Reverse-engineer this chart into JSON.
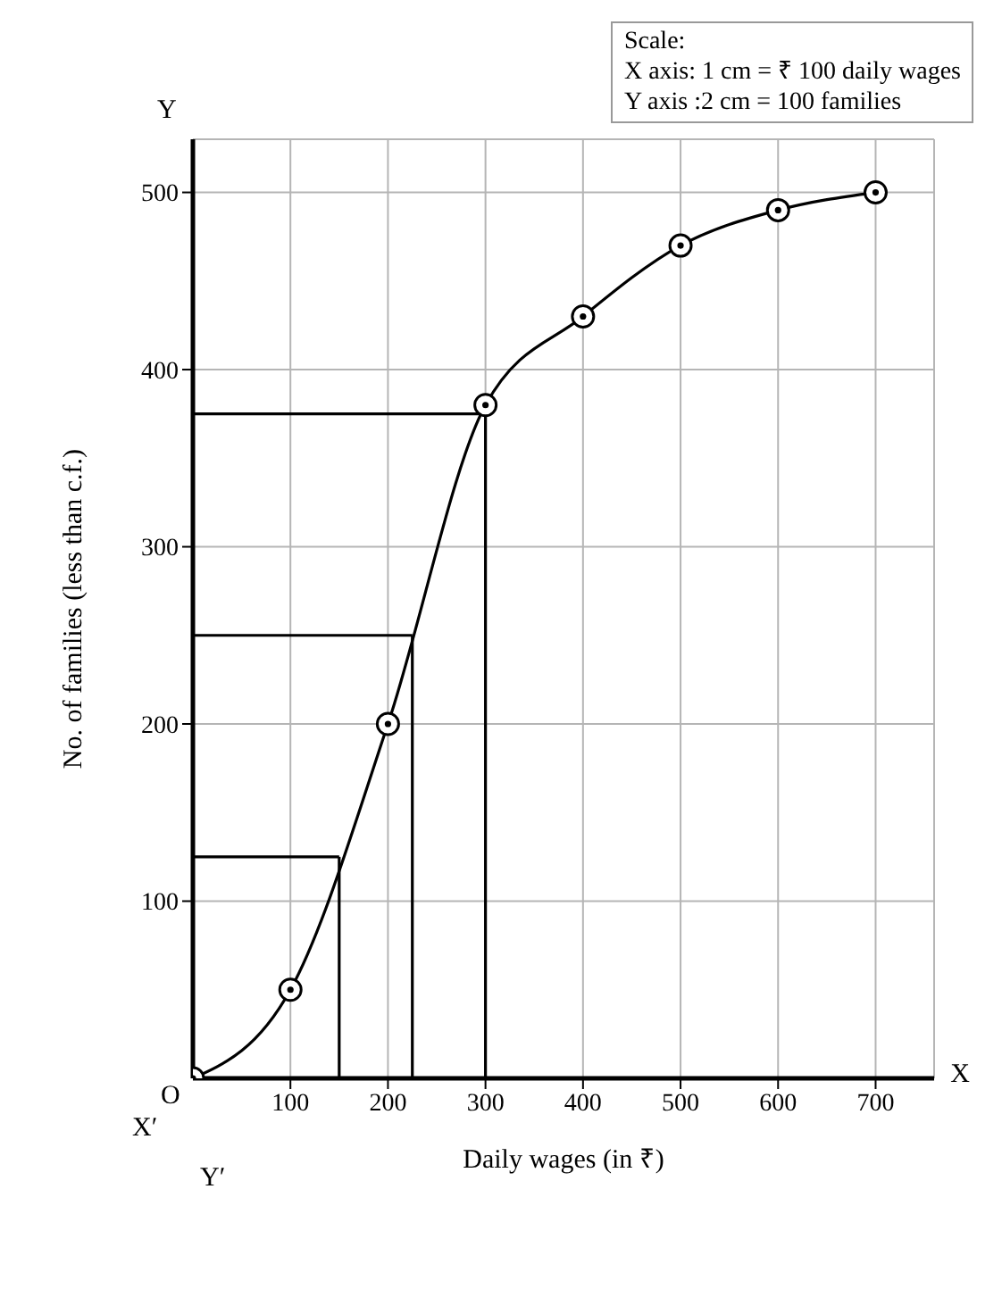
{
  "chart_data": {
    "type": "line",
    "xlabel": "Daily wages (in ₹)",
    "ylabel": "No. of families (less than c.f.)",
    "x": [
      0,
      100,
      200,
      300,
      400,
      500,
      600,
      700
    ],
    "series": [
      {
        "color": "#000000",
        "values": [
          0,
          50,
          200,
          380,
          430,
          470,
          490,
          500
        ]
      }
    ],
    "xlim": [
      0,
      760
    ],
    "ylim": [
      0,
      530
    ],
    "xticks": [
      100,
      200,
      300,
      400,
      500,
      600,
      700
    ],
    "yticks": [
      100,
      200,
      300,
      400,
      500
    ],
    "grid": true,
    "marker": "circle",
    "line_style": "solid",
    "ref_lines": [
      {
        "axis": "y",
        "value": 125,
        "color": "#000000"
      },
      {
        "axis": "y",
        "value": 250,
        "color": "#000000"
      },
      {
        "axis": "y",
        "value": 375,
        "color": "#000000"
      },
      {
        "axis": "x",
        "value": 150,
        "color": "#000000"
      },
      {
        "axis": "x",
        "value": 225,
        "color": "#000000"
      },
      {
        "axis": "x",
        "value": 300,
        "color": "#000000"
      }
    ],
    "annotations": [
      "Scale:",
      "X axis: 1 cm = ₹ 100 daily wages",
      "Y axis :2 cm = 100 families",
      "O",
      "X",
      "Y",
      "X′",
      "Y′"
    ]
  }
}
